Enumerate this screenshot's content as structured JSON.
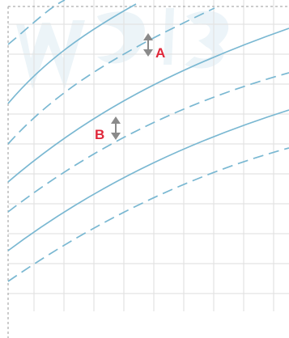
{
  "colors": {
    "grid": "#e3e3e3",
    "curve": "#7ab8d2",
    "arrow": "#8a8a8a",
    "label": "#e0283a",
    "border": "#9a9a9a",
    "watermark": "#eaf3f8"
  },
  "labels": {
    "a": "A",
    "b": "B"
  },
  "icons": {
    "arrow_a": "double-arrow-vertical-icon",
    "arrow_b": "double-arrow-vertical-icon"
  }
}
